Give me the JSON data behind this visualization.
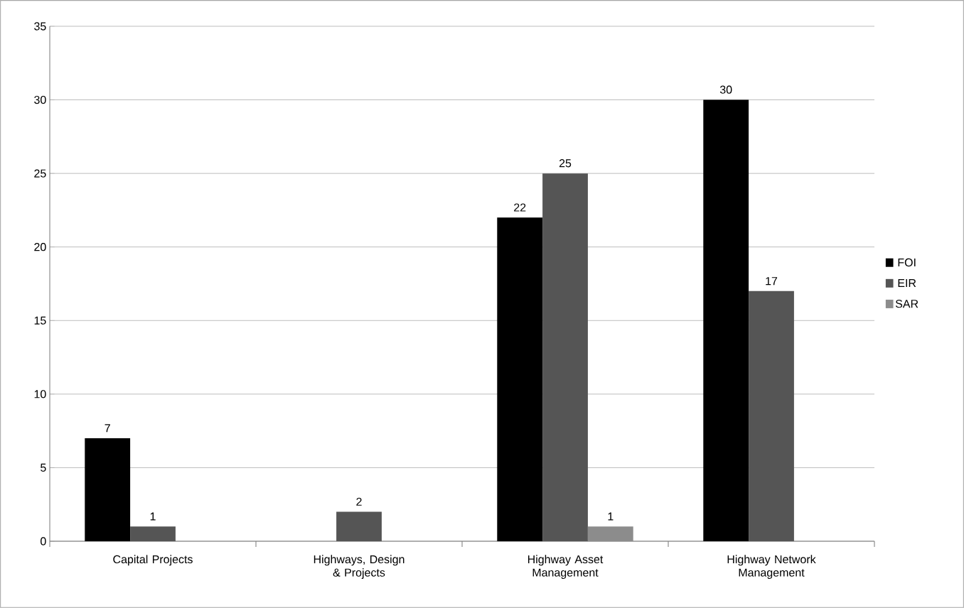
{
  "chart_data": {
    "type": "bar",
    "categories": [
      "Capital Projects",
      "Highways, Design & Projects",
      "Highway Asset Management",
      "Highway Network Management"
    ],
    "series": [
      {
        "name": "FOI",
        "color": "#000000",
        "values": [
          7,
          null,
          22,
          30
        ]
      },
      {
        "name": "EIR",
        "color": "#555555",
        "values": [
          1,
          2,
          25,
          17
        ]
      },
      {
        "name": "SAR",
        "color": "#8c8c8c",
        "values": [
          null,
          null,
          1,
          null
        ]
      }
    ],
    "ylim": [
      0,
      35
    ],
    "yticks": [
      0,
      5,
      10,
      15,
      20,
      25,
      30,
      35
    ],
    "grid": "y",
    "legend": "right",
    "data_labels": true
  }
}
